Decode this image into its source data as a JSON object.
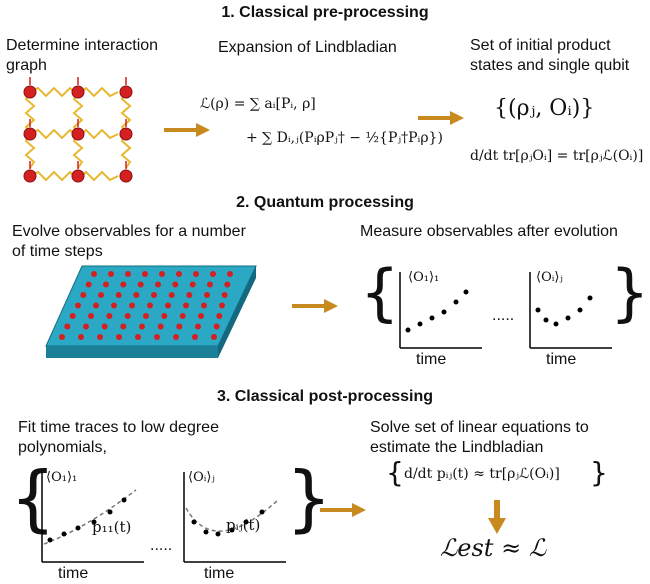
{
  "sections": [
    {
      "title": "1. Classical pre-processing"
    },
    {
      "title": "2. Quantum processing"
    },
    {
      "title": "3. Classical post-processing"
    }
  ],
  "s1": {
    "graph_label_1": "Determine interaction",
    "graph_label_2": "graph",
    "expansion_label": "Expansion of Lindbladian",
    "states_label_1": "Set of initial product",
    "states_label_2": "states and single qubit",
    "eq_line1": "ℒ(ρ) = ∑ aᵢ[Pᵢ, ρ]",
    "eq_line2": "+ ∑ Dᵢ,ⱼ(PᵢρPⱼ† − ½{Pⱼ†Pᵢρ})",
    "set_expr": "{(ρⱼ, Oᵢ)}",
    "deriv_expr": "d/dt tr[ρⱼOᵢ] = tr[ρⱼℒ(Oᵢ)]"
  },
  "s2": {
    "evolve_label_1": "Evolve observables for a number",
    "evolve_label_2": "of time steps",
    "measure_label": "Measure observables after evolution",
    "plot1_label": "⟨O₁⟩₁",
    "plot2_label": "⟨Oᵢ⟩ⱼ",
    "xlabel": "time",
    "dots": "....."
  },
  "s3": {
    "fit_label_1": "Fit time traces to low degree",
    "fit_label_2": "polynomials,",
    "solve_label_1": "Solve set of linear equations to",
    "solve_label_2": "estimate the Lindbladian",
    "plot1_label": "⟨O₁⟩₁",
    "plot2_label": "⟨Oᵢ⟩ⱼ",
    "fit1_label": "p₁₁(t)",
    "fit2_label": "pᵢⱼ(t)",
    "xlabel": "time",
    "dots": ".....",
    "system_expr": "d/dt pᵢⱼ(t) ≈ tr[ρⱼℒ(Oᵢ)]",
    "result_expr": "ℒest ≈ ℒ"
  },
  "colors": {
    "arrow": "#c8891f",
    "qubit": "#d42020",
    "spring": "#e8b830",
    "chip": "#1f95b0"
  }
}
